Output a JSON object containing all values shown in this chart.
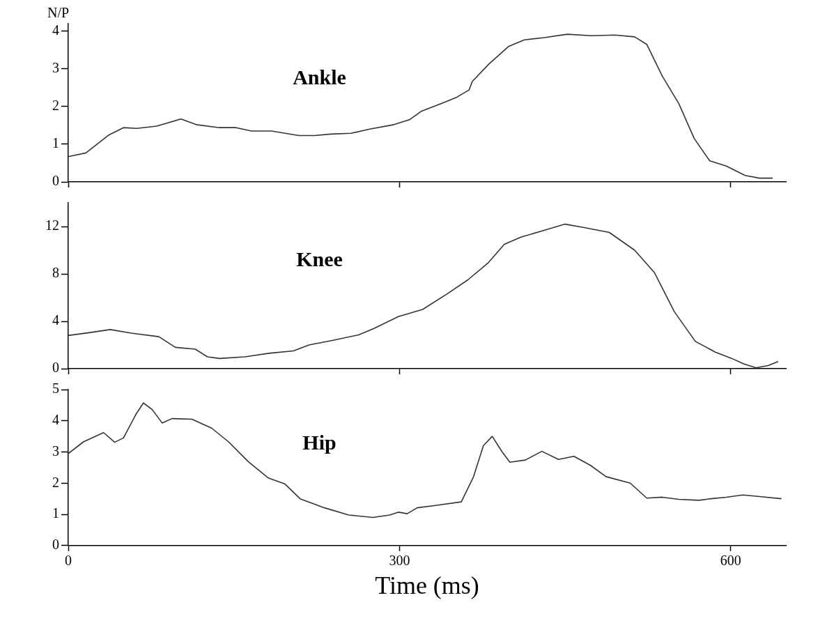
{
  "chart_data": [
    {
      "type": "line",
      "ylabel": "N/P",
      "annotations": [
        "Ankle"
      ],
      "xlim": [
        0,
        650
      ],
      "xticks": [
        {
          "value": 0,
          "label": null
        },
        {
          "value": 300,
          "label": null
        },
        {
          "value": 600,
          "label": null
        }
      ],
      "ylim": [
        0,
        4.2
      ],
      "yticks": [
        0,
        1,
        2,
        3,
        4
      ],
      "tick_labels": "y",
      "grid": false,
      "legend": false,
      "series": [
        {
          "color": "#333333",
          "x": [
            0,
            16,
            37,
            50,
            62,
            80,
            102,
            116,
            137,
            152,
            166,
            184,
            209,
            223,
            238,
            256,
            273,
            295,
            309,
            320,
            338,
            352,
            363,
            366,
            381,
            399,
            413,
            431,
            452,
            474,
            495,
            513,
            524,
            538,
            553,
            567,
            581,
            596,
            613,
            626,
            638
          ],
          "values": [
            0.67,
            0.77,
            1.25,
            1.44,
            1.42,
            1.48,
            1.67,
            1.52,
            1.44,
            1.44,
            1.35,
            1.35,
            1.23,
            1.23,
            1.27,
            1.29,
            1.4,
            1.52,
            1.65,
            1.88,
            2.08,
            2.25,
            2.44,
            2.67,
            3.13,
            3.6,
            3.77,
            3.83,
            3.92,
            3.88,
            3.9,
            3.85,
            3.65,
            2.81,
            2.08,
            1.15,
            0.56,
            0.42,
            0.17,
            0.1,
            0.1
          ]
        }
      ]
    },
    {
      "type": "line",
      "annotations": [
        "Knee"
      ],
      "xlim": [
        0,
        650
      ],
      "xticks": [
        {
          "value": 0,
          "label": null
        },
        {
          "value": 300,
          "label": null
        },
        {
          "value": 600,
          "label": null
        }
      ],
      "ylim": [
        0,
        14
      ],
      "yticks": [
        0,
        4,
        8,
        12
      ],
      "tick_labels": "y",
      "grid": false,
      "legend": false,
      "series": [
        {
          "color": "#333333",
          "x": [
            0,
            20,
            38,
            57,
            82,
            97,
            115,
            126,
            137,
            160,
            182,
            204,
            218,
            240,
            263,
            277,
            299,
            321,
            343,
            362,
            380,
            395,
            410,
            432,
            450,
            468,
            490,
            513,
            531,
            549,
            568,
            586,
            601,
            612,
            623,
            634,
            643
          ],
          "values": [
            2.8,
            3.05,
            3.3,
            3.0,
            2.7,
            1.8,
            1.65,
            1.0,
            0.86,
            1.0,
            1.3,
            1.5,
            2.0,
            2.4,
            2.85,
            3.4,
            4.4,
            5.0,
            6.3,
            7.5,
            8.9,
            10.5,
            11.1,
            11.7,
            12.2,
            11.9,
            11.5,
            10.0,
            8.1,
            4.8,
            2.3,
            1.4,
            0.86,
            0.4,
            0.07,
            0.26,
            0.6
          ]
        }
      ]
    },
    {
      "type": "line",
      "xlabel": "Time (ms)",
      "annotations": [
        "Hip"
      ],
      "xlim": [
        0,
        650
      ],
      "xticks": [
        0,
        300,
        600
      ],
      "ylim": [
        0,
        5
      ],
      "yticks": [
        0,
        1,
        2,
        3,
        4,
        5
      ],
      "grid": false,
      "legend": false,
      "series": [
        {
          "color": "#333333",
          "x": [
            0,
            14,
            32,
            42,
            50,
            61,
            68,
            76,
            85,
            94,
            112,
            130,
            145,
            163,
            181,
            196,
            210,
            232,
            254,
            276,
            291,
            299,
            307,
            316,
            334,
            356,
            367,
            376,
            384,
            393,
            400,
            414,
            429,
            444,
            458,
            473,
            487,
            509,
            524,
            538,
            553,
            571,
            582,
            596,
            611,
            626,
            646
          ],
          "values": [
            2.95,
            3.33,
            3.62,
            3.31,
            3.45,
            4.19,
            4.57,
            4.36,
            3.93,
            4.07,
            4.05,
            3.76,
            3.33,
            2.69,
            2.17,
            1.98,
            1.5,
            1.21,
            0.98,
            0.9,
            0.98,
            1.07,
            1.02,
            1.21,
            1.29,
            1.4,
            2.2,
            3.2,
            3.5,
            3.0,
            2.67,
            2.74,
            3.02,
            2.76,
            2.86,
            2.57,
            2.21,
            2.0,
            1.52,
            1.55,
            1.48,
            1.45,
            1.5,
            1.55,
            1.62,
            1.57,
            1.5
          ]
        }
      ]
    }
  ]
}
